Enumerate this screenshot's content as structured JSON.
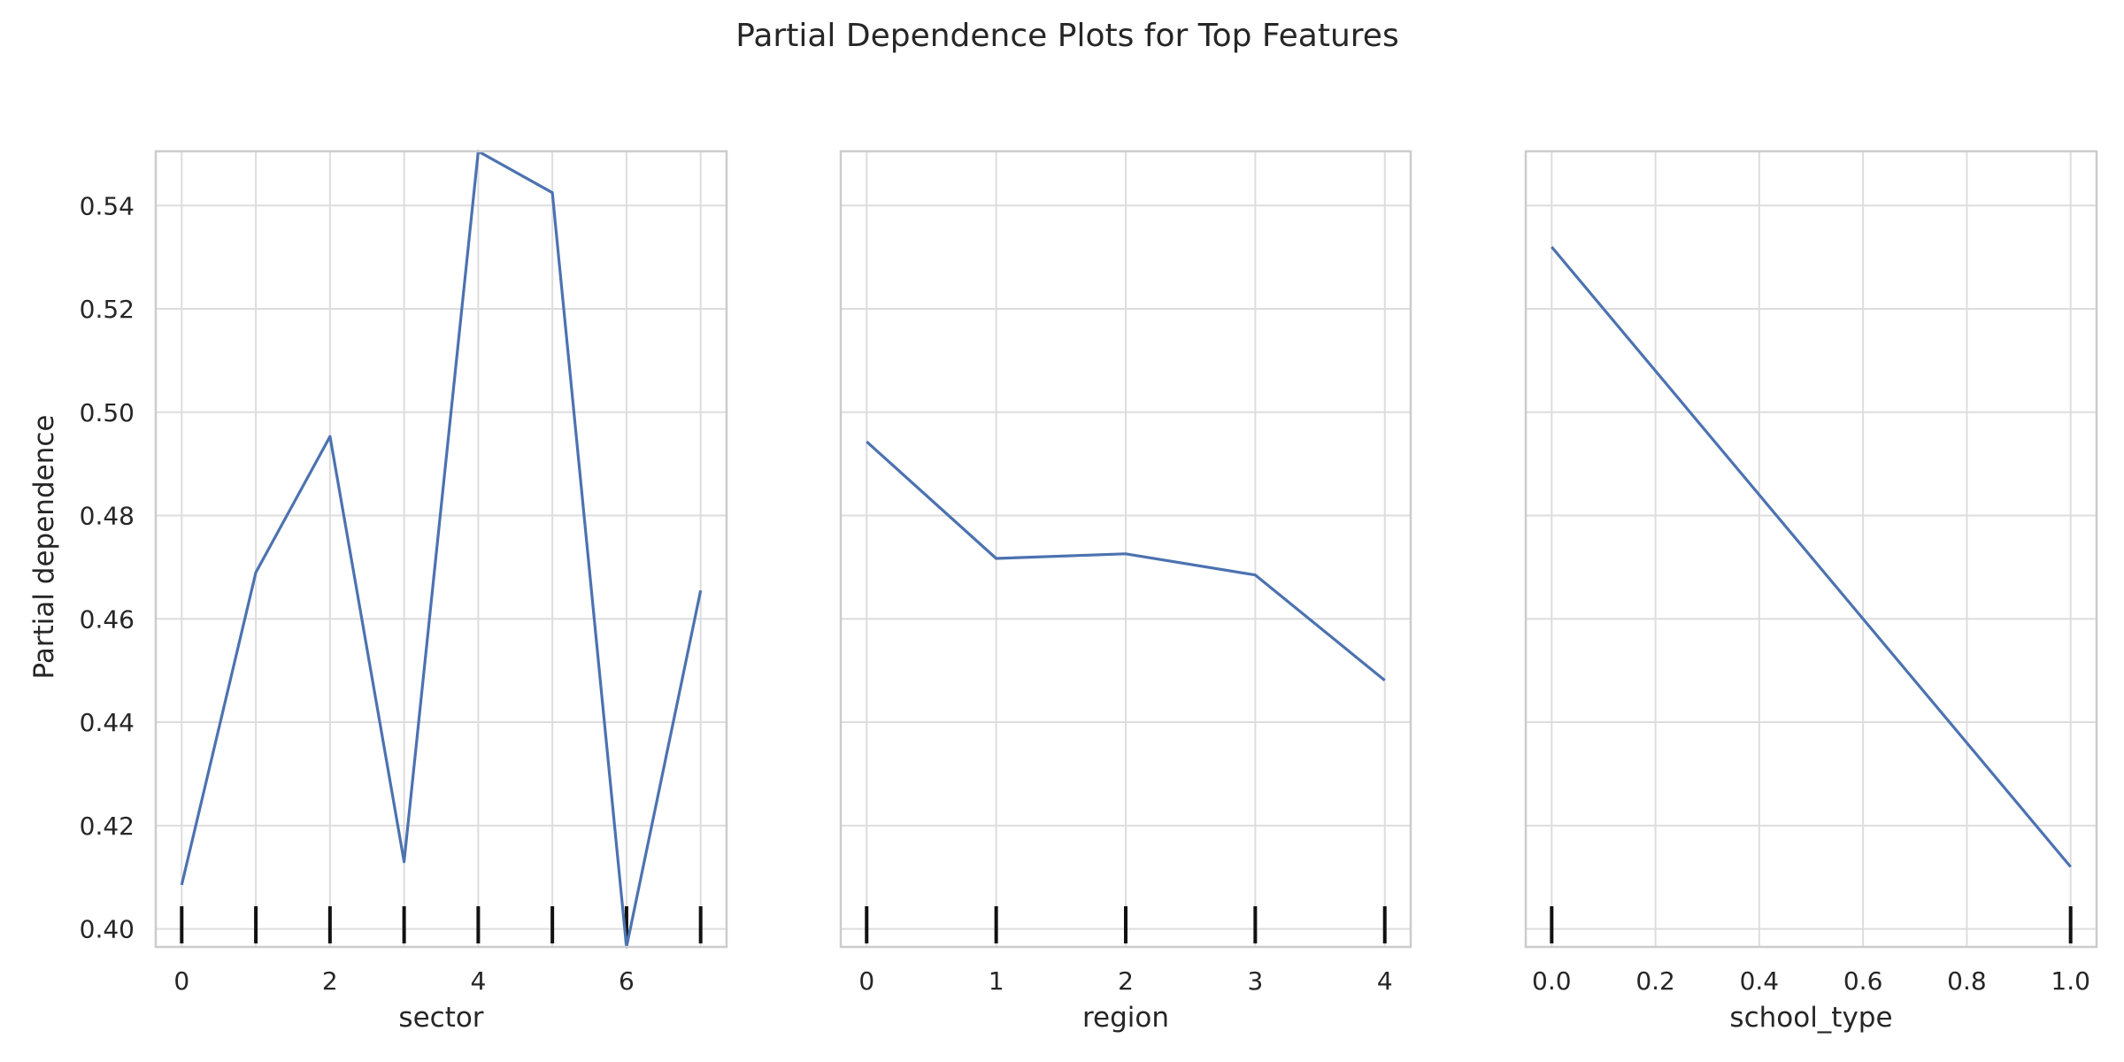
{
  "figure": {
    "title": "Partial Dependence Plots for Top Features",
    "ylabel": "Partial dependence",
    "line_color": "#4c72b0",
    "grid_color": "#dddddd",
    "frame_color": "#cccccc",
    "rug_color": "#111111"
  },
  "chart_data": [
    {
      "type": "line",
      "xlabel": "sector",
      "ylabel": "Partial dependence",
      "x": [
        0,
        1,
        2,
        3,
        4,
        5,
        6,
        7
      ],
      "y": [
        0.4085,
        0.469,
        0.4953,
        0.413,
        0.5505,
        0.5425,
        0.3965,
        0.4655
      ],
      "xlim": [
        -0.35,
        7.35
      ],
      "ylim": [
        0.3965,
        0.5505
      ],
      "xticks": [
        0,
        2,
        4,
        6
      ],
      "xtick_labels": [
        "0",
        "2",
        "4",
        "6"
      ],
      "yticks": [
        0.4,
        0.42,
        0.44,
        0.46,
        0.48,
        0.5,
        0.52,
        0.54
      ],
      "ytick_labels": [
        "0.40",
        "0.42",
        "0.44",
        "0.46",
        "0.48",
        "0.50",
        "0.52",
        "0.54"
      ],
      "xgrid": [
        0,
        1,
        2,
        3,
        4,
        5,
        6,
        7
      ],
      "rug": [
        0,
        1,
        2,
        3,
        4,
        5,
        6,
        7
      ],
      "grid": true
    },
    {
      "type": "line",
      "xlabel": "region",
      "x": [
        0,
        1,
        2,
        3,
        4
      ],
      "y": [
        0.4943,
        0.4717,
        0.4726,
        0.4685,
        0.4481
      ],
      "xlim": [
        -0.2,
        4.2
      ],
      "ylim": [
        0.3965,
        0.5505
      ],
      "xticks": [
        0,
        1,
        2,
        3,
        4
      ],
      "xtick_labels": [
        "0",
        "1",
        "2",
        "3",
        "4"
      ],
      "yticks": [
        0.4,
        0.42,
        0.44,
        0.46,
        0.48,
        0.5,
        0.52,
        0.54
      ],
      "xgrid": [
        0,
        1,
        2,
        3,
        4
      ],
      "rug": [
        0,
        1,
        2,
        3,
        4
      ],
      "grid": true
    },
    {
      "type": "line",
      "xlabel": "school_type",
      "x": [
        0.0,
        1.0
      ],
      "y": [
        0.532,
        0.412
      ],
      "xlim": [
        -0.05,
        1.05
      ],
      "ylim": [
        0.3965,
        0.5505
      ],
      "xticks": [
        0.0,
        0.2,
        0.4,
        0.6,
        0.8,
        1.0
      ],
      "xtick_labels": [
        "0.0",
        "0.2",
        "0.4",
        "0.6",
        "0.8",
        "1.0"
      ],
      "yticks": [
        0.4,
        0.42,
        0.44,
        0.46,
        0.48,
        0.5,
        0.52,
        0.54
      ],
      "xgrid": [
        0.0,
        0.2,
        0.4,
        0.6,
        0.8,
        1.0
      ],
      "rug": [
        0.0,
        1.0
      ],
      "grid": true
    }
  ]
}
